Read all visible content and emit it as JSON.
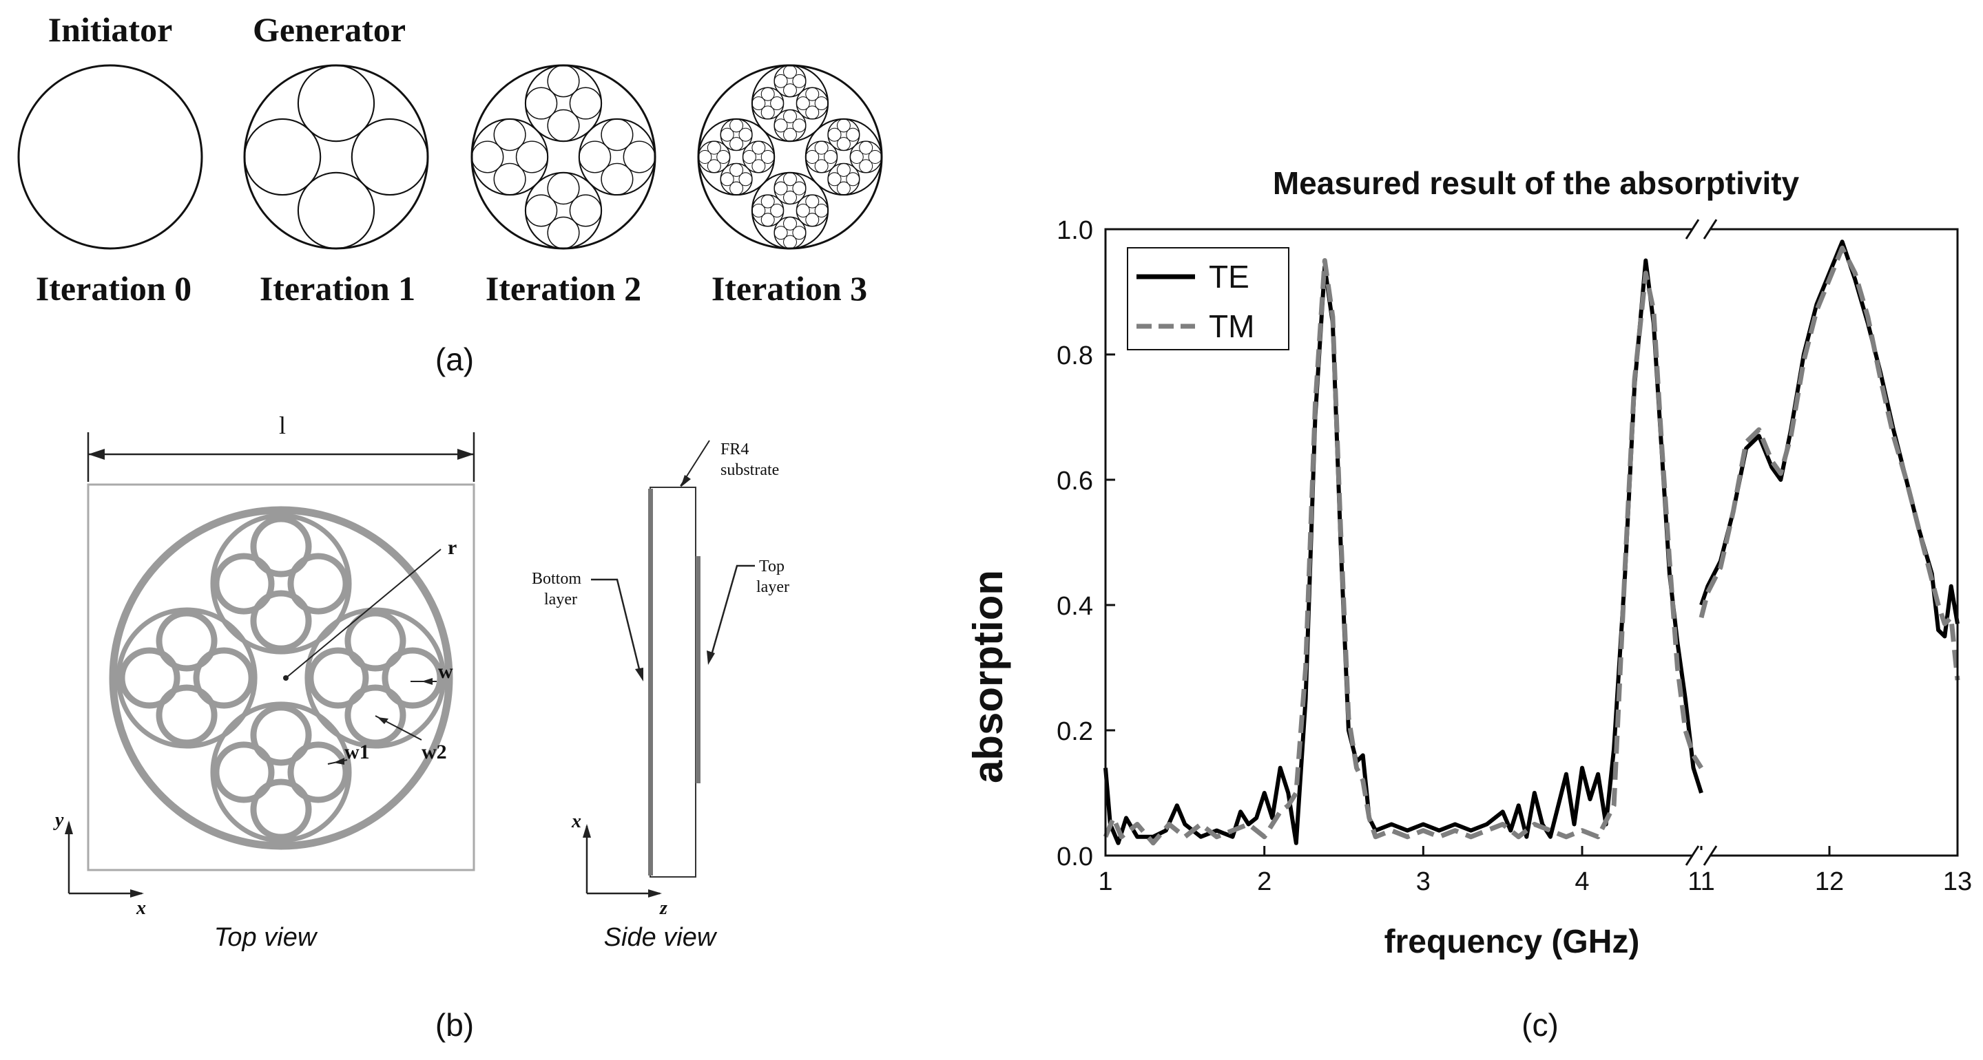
{
  "panel_a": {
    "caption": "(a)",
    "titles": [
      "Initiator",
      "Generator"
    ],
    "iterations": [
      "Iteration 0",
      "Iteration 1",
      "Iteration 2",
      "Iteration 3"
    ]
  },
  "panel_b": {
    "caption": "(b)",
    "top_view": {
      "label": "Top view",
      "dim_l": "l",
      "dim_r": "r",
      "dim_w": "w",
      "dim_w1": "w1",
      "dim_w2": "w2",
      "axis_x": "x",
      "axis_y": "y"
    },
    "side_view": {
      "label": "Side view",
      "substrate_line1": "FR4",
      "substrate_line2": "substrate",
      "bottom_line1": "Bottom",
      "bottom_line2": "layer",
      "top_line1": "Top",
      "top_line2": "layer",
      "axis_x": "x",
      "axis_z": "z"
    }
  },
  "panel_c": {
    "caption": "(c)"
  },
  "colors": {
    "te": "#000000",
    "tm": "#7f7f7f",
    "structure": "#9a9a9a",
    "ink": "#111111"
  },
  "chart_data": {
    "type": "line",
    "title": "Measured result of the absorptivity",
    "xlabel": "frequency (GHz)",
    "ylabel": "absorption",
    "ylim": [
      0,
      1
    ],
    "yticks": [
      "0.0",
      "0.2",
      "0.4",
      "0.6",
      "0.8",
      "1.0"
    ],
    "x_segments": [
      {
        "range": [
          1,
          4.75
        ],
        "ticks": [
          "1",
          "2",
          "3",
          "4"
        ]
      },
      {
        "range": [
          11,
          13
        ],
        "ticks": [
          "11",
          "12",
          "13"
        ]
      }
    ],
    "axis_break": "between 4.75 and 11 GHz",
    "legend": {
      "position": "top-left",
      "entries": [
        "TE",
        "TM"
      ]
    },
    "series": [
      {
        "name": "TE",
        "style": "solid",
        "segments": [
          [
            [
              1.0,
              0.14
            ],
            [
              1.03,
              0.05
            ],
            [
              1.08,
              0.02
            ],
            [
              1.13,
              0.06
            ],
            [
              1.2,
              0.03
            ],
            [
              1.3,
              0.03
            ],
            [
              1.38,
              0.04
            ],
            [
              1.45,
              0.08
            ],
            [
              1.5,
              0.05
            ],
            [
              1.6,
              0.03
            ],
            [
              1.7,
              0.04
            ],
            [
              1.8,
              0.03
            ],
            [
              1.85,
              0.07
            ],
            [
              1.9,
              0.05
            ],
            [
              1.95,
              0.06
            ],
            [
              2.0,
              0.1
            ],
            [
              2.05,
              0.06
            ],
            [
              2.1,
              0.14
            ],
            [
              2.15,
              0.1
            ],
            [
              2.2,
              0.02
            ],
            [
              2.26,
              0.25
            ],
            [
              2.32,
              0.7
            ],
            [
              2.38,
              0.94
            ],
            [
              2.43,
              0.85
            ],
            [
              2.48,
              0.5
            ],
            [
              2.53,
              0.2
            ],
            [
              2.58,
              0.15
            ],
            [
              2.62,
              0.16
            ],
            [
              2.66,
              0.06
            ],
            [
              2.7,
              0.04
            ],
            [
              2.8,
              0.05
            ],
            [
              2.9,
              0.04
            ],
            [
              3.0,
              0.05
            ],
            [
              3.1,
              0.04
            ],
            [
              3.2,
              0.05
            ],
            [
              3.3,
              0.04
            ],
            [
              3.4,
              0.05
            ],
            [
              3.5,
              0.07
            ],
            [
              3.55,
              0.04
            ],
            [
              3.6,
              0.08
            ],
            [
              3.65,
              0.03
            ],
            [
              3.7,
              0.1
            ],
            [
              3.75,
              0.05
            ],
            [
              3.8,
              0.03
            ],
            [
              3.85,
              0.08
            ],
            [
              3.9,
              0.13
            ],
            [
              3.95,
              0.05
            ],
            [
              4.0,
              0.14
            ],
            [
              4.05,
              0.09
            ],
            [
              4.1,
              0.13
            ],
            [
              4.15,
              0.05
            ],
            [
              4.2,
              0.17
            ],
            [
              4.27,
              0.45
            ],
            [
              4.33,
              0.75
            ],
            [
              4.4,
              0.95
            ],
            [
              4.45,
              0.85
            ],
            [
              4.5,
              0.65
            ],
            [
              4.55,
              0.45
            ],
            [
              4.6,
              0.34
            ],
            [
              4.65,
              0.25
            ],
            [
              4.7,
              0.14
            ],
            [
              4.75,
              0.1
            ]
          ],
          [
            [
              11.0,
              0.4
            ],
            [
              11.05,
              0.43
            ],
            [
              11.15,
              0.47
            ],
            [
              11.25,
              0.55
            ],
            [
              11.35,
              0.65
            ],
            [
              11.45,
              0.67
            ],
            [
              11.55,
              0.62
            ],
            [
              11.62,
              0.6
            ],
            [
              11.7,
              0.68
            ],
            [
              11.8,
              0.8
            ],
            [
              11.9,
              0.88
            ],
            [
              12.0,
              0.93
            ],
            [
              12.1,
              0.98
            ],
            [
              12.2,
              0.92
            ],
            [
              12.3,
              0.85
            ],
            [
              12.4,
              0.77
            ],
            [
              12.5,
              0.68
            ],
            [
              12.6,
              0.6
            ],
            [
              12.7,
              0.52
            ],
            [
              12.8,
              0.45
            ],
            [
              12.85,
              0.36
            ],
            [
              12.9,
              0.35
            ],
            [
              12.95,
              0.43
            ],
            [
              13.0,
              0.37
            ]
          ]
        ]
      },
      {
        "name": "TM",
        "style": "dashed",
        "segments": [
          [
            [
              1.0,
              0.03
            ],
            [
              1.05,
              0.06
            ],
            [
              1.1,
              0.03
            ],
            [
              1.2,
              0.05
            ],
            [
              1.3,
              0.02
            ],
            [
              1.4,
              0.05
            ],
            [
              1.5,
              0.03
            ],
            [
              1.6,
              0.05
            ],
            [
              1.7,
              0.03
            ],
            [
              1.8,
              0.04
            ],
            [
              1.9,
              0.05
            ],
            [
              2.0,
              0.03
            ],
            [
              2.05,
              0.05
            ],
            [
              2.1,
              0.07
            ],
            [
              2.15,
              0.08
            ],
            [
              2.2,
              0.1
            ],
            [
              2.26,
              0.3
            ],
            [
              2.32,
              0.72
            ],
            [
              2.38,
              0.95
            ],
            [
              2.43,
              0.86
            ],
            [
              2.48,
              0.52
            ],
            [
              2.53,
              0.22
            ],
            [
              2.58,
              0.14
            ],
            [
              2.62,
              0.12
            ],
            [
              2.66,
              0.06
            ],
            [
              2.7,
              0.03
            ],
            [
              2.8,
              0.04
            ],
            [
              2.9,
              0.03
            ],
            [
              3.0,
              0.04
            ],
            [
              3.1,
              0.03
            ],
            [
              3.2,
              0.04
            ],
            [
              3.3,
              0.03
            ],
            [
              3.4,
              0.04
            ],
            [
              3.5,
              0.05
            ],
            [
              3.6,
              0.03
            ],
            [
              3.7,
              0.05
            ],
            [
              3.8,
              0.04
            ],
            [
              3.9,
              0.03
            ],
            [
              4.0,
              0.04
            ],
            [
              4.1,
              0.03
            ],
            [
              4.2,
              0.08
            ],
            [
              4.27,
              0.46
            ],
            [
              4.33,
              0.76
            ],
            [
              4.4,
              0.93
            ],
            [
              4.45,
              0.87
            ],
            [
              4.5,
              0.66
            ],
            [
              4.55,
              0.47
            ],
            [
              4.6,
              0.3
            ],
            [
              4.65,
              0.2
            ],
            [
              4.7,
              0.16
            ],
            [
              4.75,
              0.14
            ]
          ],
          [
            [
              11.0,
              0.38
            ],
            [
              11.05,
              0.42
            ],
            [
              11.15,
              0.46
            ],
            [
              11.25,
              0.55
            ],
            [
              11.35,
              0.66
            ],
            [
              11.45,
              0.68
            ],
            [
              11.55,
              0.63
            ],
            [
              11.62,
              0.61
            ],
            [
              11.7,
              0.67
            ],
            [
              11.8,
              0.79
            ],
            [
              11.9,
              0.87
            ],
            [
              12.0,
              0.92
            ],
            [
              12.1,
              0.97
            ],
            [
              12.2,
              0.93
            ],
            [
              12.3,
              0.86
            ],
            [
              12.4,
              0.76
            ],
            [
              12.5,
              0.67
            ],
            [
              12.6,
              0.6
            ],
            [
              12.7,
              0.52
            ],
            [
              12.8,
              0.44
            ],
            [
              12.85,
              0.4
            ],
            [
              12.9,
              0.37
            ],
            [
              12.95,
              0.38
            ],
            [
              13.0,
              0.28
            ]
          ]
        ]
      }
    ]
  }
}
